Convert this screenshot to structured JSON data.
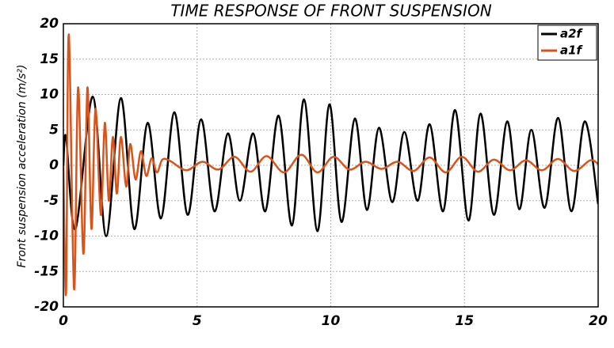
{
  "chart_data": {
    "type": "line",
    "title": "TIME RESPONSE OF FRONT SUSPENSION",
    "y_label": "Front suspension acceleration (m/s²)",
    "xlim": [
      0,
      20
    ],
    "ylim": [
      -20,
      20
    ],
    "xticks": [
      0,
      5,
      10,
      15,
      20
    ],
    "yticks": [
      -20,
      -15,
      -10,
      -5,
      0,
      5,
      10,
      15,
      20
    ],
    "grid": true,
    "legend": "upper right",
    "series": [
      {
        "name": "a2f",
        "color": "#000000",
        "x": [
          0,
          0.1,
          0.45,
          1.1,
          1.6,
          2.15,
          2.65,
          3.15,
          3.65,
          4.15,
          4.65,
          5.15,
          5.65,
          6.15,
          6.6,
          7.1,
          7.55,
          8.05,
          8.55,
          9.0,
          9.5,
          9.95,
          10.4,
          10.9,
          11.35,
          11.8,
          12.3,
          12.75,
          13.25,
          13.7,
          14.2,
          14.65,
          15.15,
          15.6,
          16.1,
          16.6,
          17.05,
          17.5,
          18.0,
          18.5,
          19.0,
          19.5,
          20.0
        ],
        "values": [
          0,
          4,
          -9,
          9.7,
          -10,
          9.5,
          -9,
          6,
          -7.5,
          7.5,
          -7,
          6.5,
          -6.5,
          4.5,
          -5,
          4.5,
          -6.5,
          7,
          -8.5,
          9.3,
          -9.3,
          8.6,
          -8,
          6.6,
          -6.3,
          5.3,
          -5.2,
          4.7,
          -5,
          5.8,
          -6.5,
          7.8,
          -7.8,
          7.3,
          -7,
          6.2,
          -6.2,
          5,
          -6,
          6.7,
          -6.5,
          6.2,
          -5.5
        ]
      },
      {
        "name": "a1f",
        "color": "#d9541a",
        "x": [
          0,
          0.1,
          0.2,
          0.4,
          0.55,
          0.75,
          0.9,
          1.05,
          1.2,
          1.4,
          1.55,
          1.7,
          1.85,
          2.0,
          2.15,
          2.35,
          2.5,
          2.7,
          2.9,
          3.1,
          3.3,
          3.5,
          3.7,
          4.0,
          4.6,
          5.2,
          5.8,
          6.4,
          7.0,
          7.6,
          8.25,
          8.9,
          9.5,
          10.1,
          10.7,
          11.3,
          11.9,
          12.5,
          13.1,
          13.7,
          14.3,
          14.9,
          15.5,
          16.1,
          16.7,
          17.3,
          17.9,
          18.5,
          19.1,
          19.7,
          20.0
        ],
        "values": [
          0,
          -18,
          18.5,
          -17.5,
          11,
          -12.5,
          11,
          -9,
          8,
          -7,
          6,
          -5,
          4,
          -4,
          4,
          -3,
          3,
          -2,
          2,
          -1.5,
          1,
          -1,
          0.8,
          0.6,
          -0.7,
          0.5,
          -0.6,
          1.2,
          -0.9,
          1.3,
          -1,
          1.5,
          -1,
          1.2,
          -0.6,
          0.5,
          -0.5,
          0.5,
          -0.8,
          1.1,
          -1,
          1.2,
          -0.9,
          0.8,
          -0.7,
          0.7,
          -0.7,
          0.9,
          -0.8,
          0.7,
          0.2
        ]
      }
    ]
  }
}
